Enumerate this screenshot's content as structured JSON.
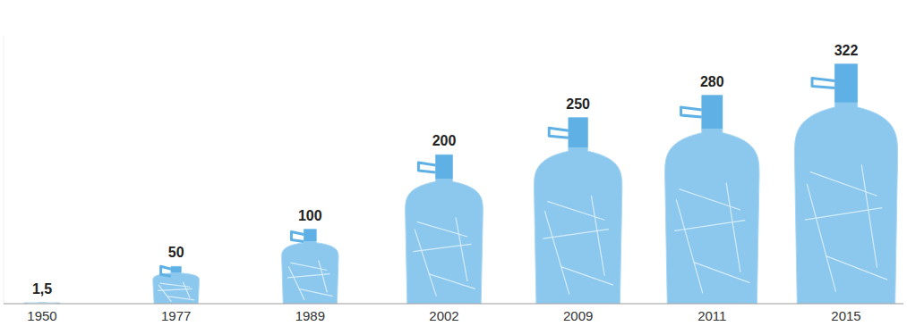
{
  "chart_data": {
    "type": "bar",
    "categories": [
      "1950",
      "1977",
      "1989",
      "2002",
      "2009",
      "2011",
      "2015"
    ],
    "values": [
      1.5,
      50,
      100,
      200,
      250,
      280,
      322
    ],
    "value_labels": [
      "1,5",
      "50",
      "100",
      "200",
      "250",
      "280",
      "322"
    ],
    "data_labels": true,
    "color": "#8cc8ee",
    "ylim": [
      0,
      360
    ],
    "tick_labels": "x"
  }
}
